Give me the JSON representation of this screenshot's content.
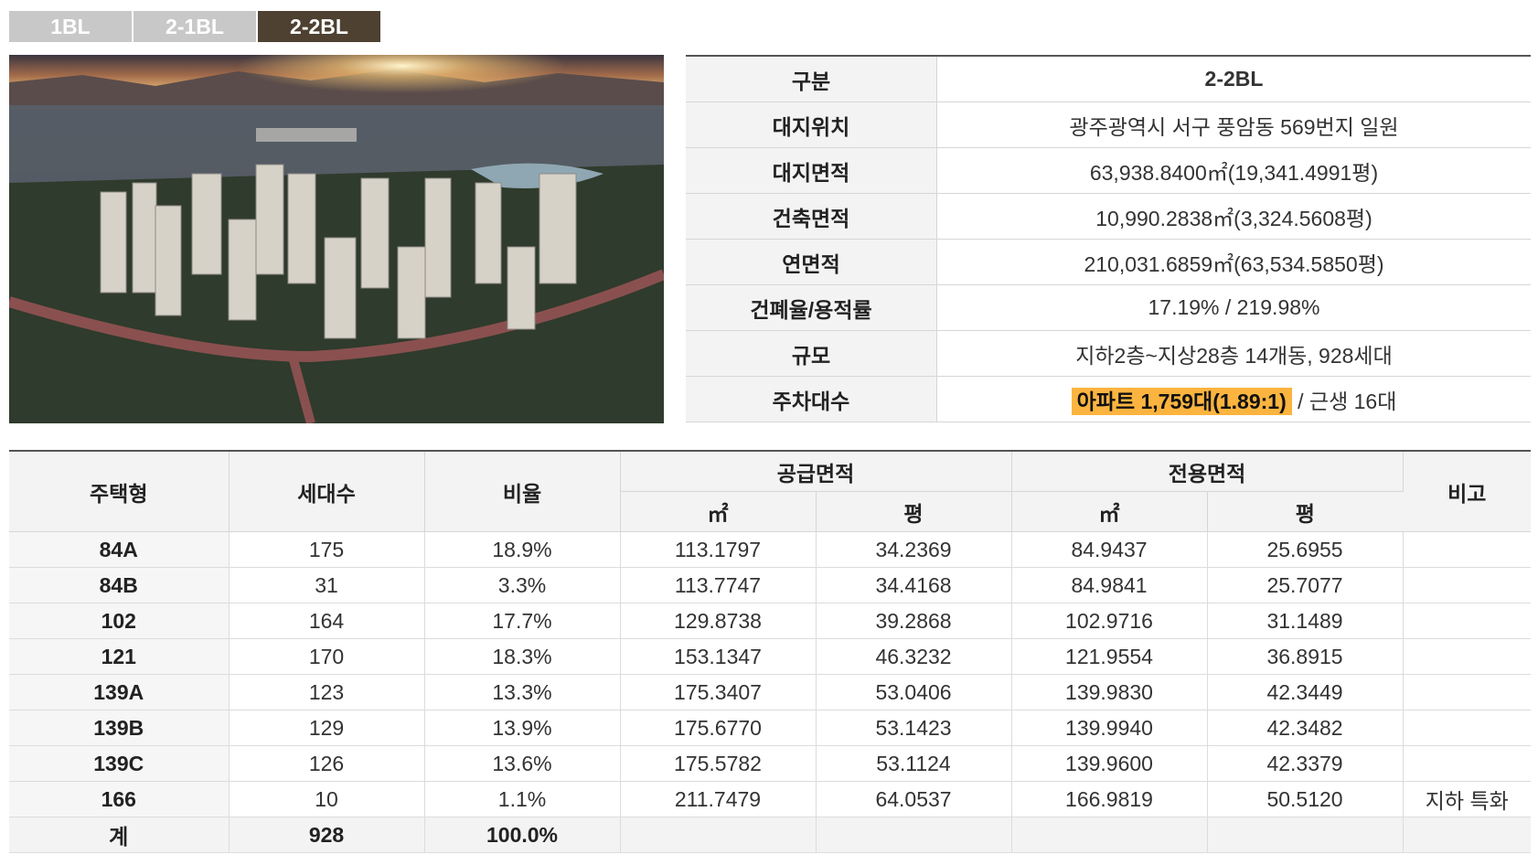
{
  "tabs": [
    {
      "label": "1BL",
      "active": false
    },
    {
      "label": "2-1BL",
      "active": false
    },
    {
      "label": "2-2BL",
      "active": true
    }
  ],
  "info": {
    "header": {
      "key": "구분",
      "value": "2-2BL"
    },
    "rows": [
      {
        "key": "대지위치",
        "value": "광주광역시 서구 풍암동 569번지 일원"
      },
      {
        "key": "대지면적",
        "value": "63,938.8400㎡(19,341.4991평)"
      },
      {
        "key": "건축면적",
        "value": "10,990.2838㎡(3,324.5608평)"
      },
      {
        "key": "연면적",
        "value": "210,031.6859㎡(63,534.5850평)"
      },
      {
        "key": "건폐율/용적률",
        "value": "17.19% / 219.98%"
      },
      {
        "key": "규모",
        "value": "지하2층~지상28층 14개동, 928세대"
      }
    ],
    "parking": {
      "key": "주차대수",
      "highlight": "아파트 1,759대(1.89:1)",
      "rest": " / 근생 16대"
    }
  },
  "units": {
    "headers": {
      "type": "주택형",
      "households": "세대수",
      "ratio": "비율",
      "supply": "공급면적",
      "exclusive": "전용면적",
      "note": "비고",
      "sqm": "㎡",
      "pyeong": "평"
    },
    "rows": [
      {
        "type": "84A",
        "households": "175",
        "ratio": "18.9%",
        "supply_m2": "113.1797",
        "supply_py": "34.2369",
        "excl_m2": "84.9437",
        "excl_py": "25.6955",
        "note": ""
      },
      {
        "type": "84B",
        "households": "31",
        "ratio": "3.3%",
        "supply_m2": "113.7747",
        "supply_py": "34.4168",
        "excl_m2": "84.9841",
        "excl_py": "25.7077",
        "note": ""
      },
      {
        "type": "102",
        "households": "164",
        "ratio": "17.7%",
        "supply_m2": "129.8738",
        "supply_py": "39.2868",
        "excl_m2": "102.9716",
        "excl_py": "31.1489",
        "note": ""
      },
      {
        "type": "121",
        "households": "170",
        "ratio": "18.3%",
        "supply_m2": "153.1347",
        "supply_py": "46.3232",
        "excl_m2": "121.9554",
        "excl_py": "36.8915",
        "note": ""
      },
      {
        "type": "139A",
        "households": "123",
        "ratio": "13.3%",
        "supply_m2": "175.3407",
        "supply_py": "53.0406",
        "excl_m2": "139.9830",
        "excl_py": "42.3449",
        "note": ""
      },
      {
        "type": "139B",
        "households": "129",
        "ratio": "13.9%",
        "supply_m2": "175.6770",
        "supply_py": "53.1423",
        "excl_m2": "139.9940",
        "excl_py": "42.3482",
        "note": ""
      },
      {
        "type": "139C",
        "households": "126",
        "ratio": "13.6%",
        "supply_m2": "175.5782",
        "supply_py": "53.1124",
        "excl_m2": "139.9600",
        "excl_py": "42.3379",
        "note": ""
      },
      {
        "type": "166",
        "households": "10",
        "ratio": "1.1%",
        "supply_m2": "211.7479",
        "supply_py": "64.0537",
        "excl_m2": "166.9819",
        "excl_py": "50.5120",
        "note": "지하 특화"
      }
    ],
    "total": {
      "type": "계",
      "households": "928",
      "ratio": "100.0%"
    }
  },
  "colors": {
    "active_tab": "#4e4132",
    "inactive_tab": "#c8c8c8",
    "highlight": "#fbb43f",
    "header_bg": "#f3f3f3"
  }
}
